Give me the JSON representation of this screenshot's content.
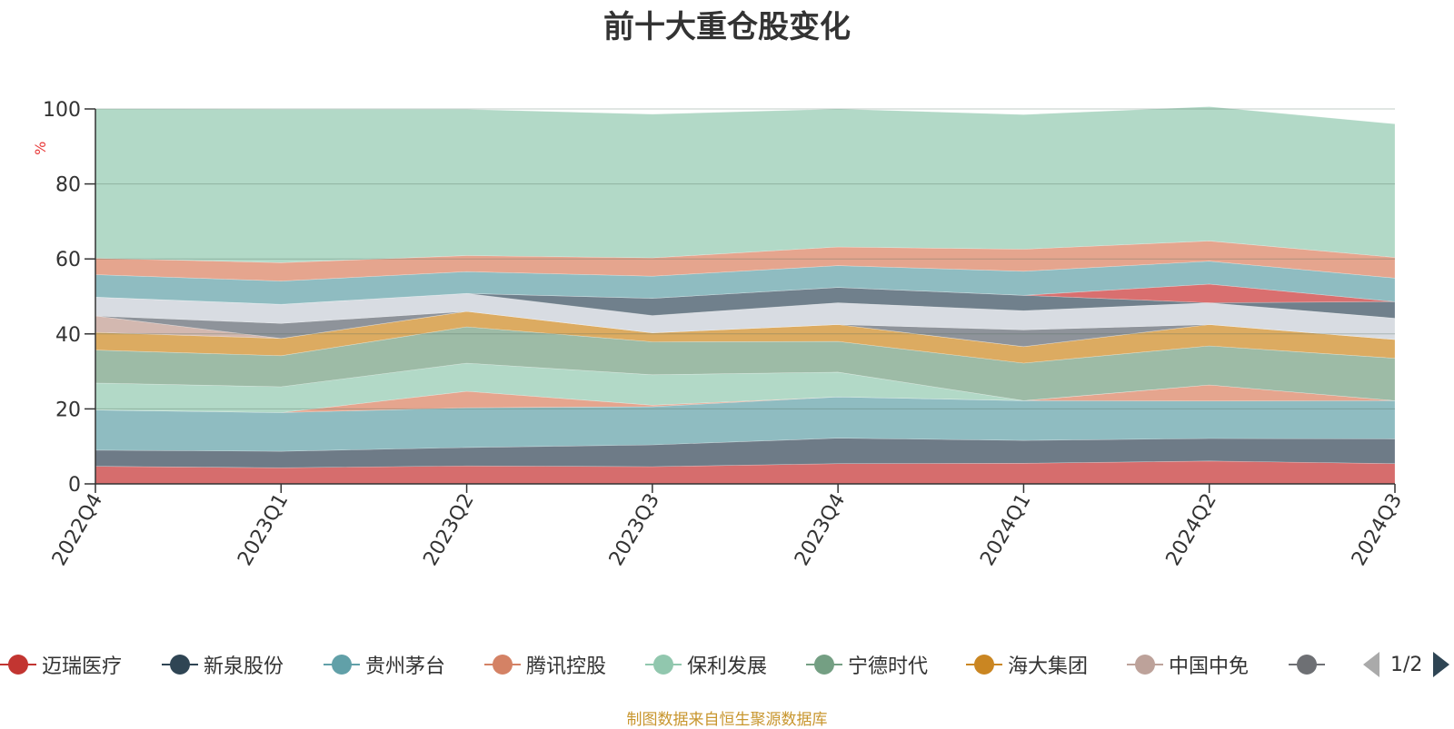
{
  "title": "前十大重仓股变化",
  "source_note": "制图数据来自恒生聚源数据库",
  "legend_pager": "1/2",
  "chart_data": {
    "type": "area",
    "stacked": true,
    "title": "前十大重仓股变化",
    "ylabel": "%",
    "ylim": [
      0,
      100
    ],
    "yticks": [
      0,
      20,
      40,
      60,
      80,
      100
    ],
    "grid": true,
    "legend_position": "bottom",
    "categories": [
      "2022Q4",
      "2023Q1",
      "2023Q2",
      "2023Q3",
      "2023Q4",
      "2024Q1",
      "2024Q2",
      "2024Q3"
    ],
    "series": [
      {
        "name": "迈瑞医疗",
        "color": "#d66d6d",
        "values": [
          4.7,
          4.3,
          4.8,
          4.6,
          5.4,
          5.5,
          6.1,
          5.4
        ]
      },
      {
        "name": "新泉股份",
        "color": "#6e7b87",
        "values": [
          4.3,
          4.4,
          4.9,
          5.8,
          6.8,
          6.1,
          6.0,
          6.6
        ]
      },
      {
        "name": "贵州茅台",
        "color": "#8fbcc1",
        "values": [
          10.7,
          10.3,
          10.6,
          10.2,
          11.0,
          10.6,
          10.0,
          10.2
        ]
      },
      {
        "name": "腾讯控股",
        "color": "#e5a58e",
        "values": [
          0,
          0,
          4.4,
          0.4,
          0,
          0,
          4.3,
          0
        ]
      },
      {
        "name": "保利发展",
        "color": "#b2d9c7",
        "values": [
          7.2,
          6.9,
          7.5,
          8.1,
          6.6,
          0,
          0,
          0
        ]
      },
      {
        "name": "宁德时代",
        "color": "#9dbba6",
        "values": [
          8.8,
          8.3,
          9.7,
          8.8,
          8.2,
          10.0,
          10.4,
          11.3
        ]
      },
      {
        "name": "海大集团",
        "color": "#dcab61",
        "values": [
          4.7,
          4.6,
          4.1,
          2.4,
          4.5,
          4.4,
          5.7,
          5.0
        ]
      },
      {
        "name": "中国中免",
        "color": "#d3b8b0",
        "values": [
          4.4,
          0,
          0,
          0,
          0,
          0,
          0,
          0
        ]
      },
      {
        "name": "",
        "color": "#8e939a",
        "values": [
          0,
          4.0,
          0,
          0,
          0,
          4.5,
          0,
          0
        ]
      },
      {
        "name": "",
        "color": "#d8dce2",
        "values": [
          5.0,
          5.1,
          4.8,
          4.6,
          5.8,
          5.1,
          5.8,
          5.7
        ]
      },
      {
        "name": "",
        "color": "#70808c",
        "values": [
          0,
          0,
          0,
          4.6,
          4.1,
          4.1,
          0,
          4.4
        ]
      },
      {
        "name": "",
        "color": "#d96f6f",
        "values": [
          0,
          0,
          0,
          0,
          0,
          0,
          5.0,
          0
        ]
      },
      {
        "name": "",
        "color": "#8fbcc1",
        "values": [
          6.0,
          6.2,
          5.8,
          5.9,
          5.8,
          6.4,
          6.1,
          6.3
        ]
      },
      {
        "name": "",
        "color": "#e5a58e",
        "values": [
          4.4,
          4.9,
          4.3,
          4.9,
          5.0,
          5.9,
          5.4,
          5.5
        ]
      },
      {
        "name": "",
        "color": "#b2d9c7",
        "values": [
          39.8,
          40.9,
          39.0,
          38.3,
          36.8,
          35.9,
          35.8,
          35.6
        ]
      }
    ]
  }
}
